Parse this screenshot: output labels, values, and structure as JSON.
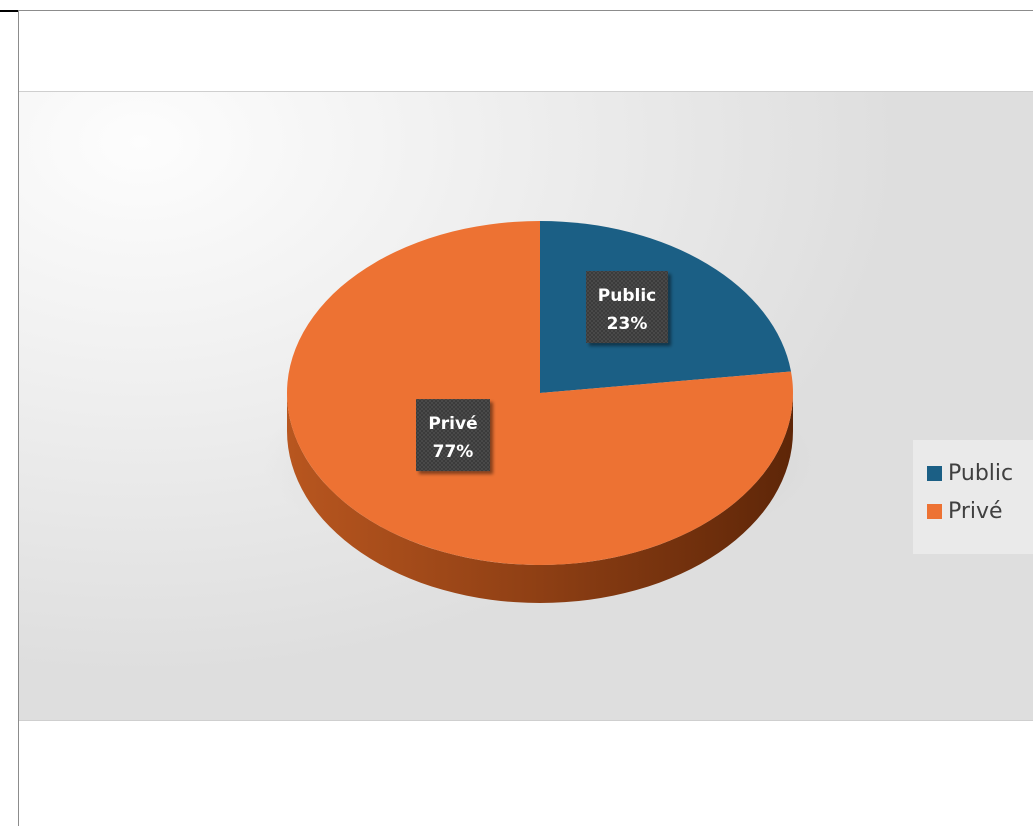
{
  "chart_data": {
    "type": "pie",
    "style": "3d",
    "categories": [
      "Public",
      "Privé"
    ],
    "values": [
      23,
      77
    ],
    "unit": "%",
    "colors": [
      "#1b5f85",
      "#ed7233"
    ],
    "data_labels": [
      {
        "name": "Public",
        "value": "23%"
      },
      {
        "name": "Privé",
        "value": "77%"
      }
    ],
    "legend": {
      "position": "right",
      "entries": [
        "Public",
        "Privé"
      ]
    }
  }
}
